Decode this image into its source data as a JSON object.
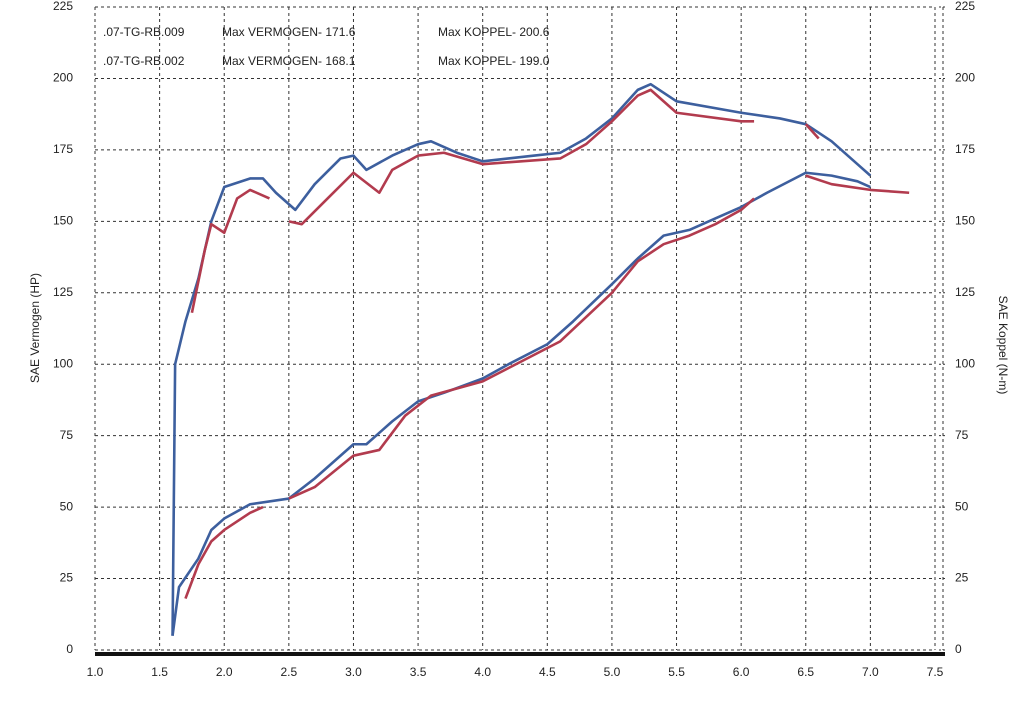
{
  "chart_data": {
    "type": "line",
    "y_label": "SAE Vermogen (HP)",
    "y2_label": "SAE Koppel (N-m)",
    "xlim": [
      1.0,
      7.5
    ],
    "xticks": [
      {
        "value": 1,
        "label": "1.0"
      },
      1.5,
      {
        "value": 2,
        "label": "2.0"
      },
      2.5,
      {
        "value": 3,
        "label": "3.0"
      },
      3.5,
      {
        "value": 4,
        "label": "4.0"
      },
      4.5,
      {
        "value": 5,
        "label": "5.0"
      },
      5.5,
      {
        "value": 6,
        "label": "6.0"
      },
      6.5,
      {
        "value": 7,
        "label": "7.0"
      },
      7.5
    ],
    "ylim": [
      0,
      225
    ],
    "yticks": [
      0,
      25,
      50,
      75,
      100,
      125,
      150,
      175,
      200,
      225
    ],
    "y2lim": [
      0,
      225
    ],
    "y2ticks": [
      0,
      25,
      50,
      75,
      100,
      125,
      150,
      175,
      200,
      225
    ],
    "grid": true,
    "legend": [
      {
        "run": ".07-TG-RB.009",
        "power": "Max VERMOGEN- 171.6",
        "torque": "Max KOPPEL- 200.6",
        "color": "#3d5f9e"
      },
      {
        "run": ".07-TG-RB.002",
        "power": "Max VERMOGEN- 168.1",
        "torque": "Max KOPPEL- 199.0",
        "color": "#b23b4e"
      }
    ],
    "series": [
      {
        "color": "#3d5f9e",
        "axis": "y",
        "x": [
          1.6,
          1.65,
          1.8,
          1.9,
          2.0,
          2.2,
          2.5,
          2.7,
          3.0,
          3.1,
          3.3,
          3.5,
          3.7,
          4.0,
          4.2,
          4.5,
          4.7,
          5.0,
          5.2,
          5.4,
          5.6,
          5.8,
          6.0,
          6.2,
          6.5,
          6.7,
          6.9,
          7.0
        ],
        "values": [
          5,
          22,
          32,
          42,
          46,
          51,
          53,
          60,
          72,
          72,
          80,
          87,
          90,
          95,
          100,
          107,
          115,
          128,
          137,
          145,
          147,
          151,
          155,
          160,
          167,
          166,
          164,
          162
        ]
      },
      {
        "color": "#b23b4e",
        "axis": "y",
        "x": [
          1.7,
          1.8,
          1.9,
          2.0,
          2.2,
          2.3,
          2.4,
          2.5,
          2.7,
          3.0,
          3.2,
          3.4,
          3.6,
          4.0,
          4.3,
          4.6,
          5.0,
          5.2,
          5.4,
          5.6,
          5.8,
          6.0,
          6.1,
          6.3,
          6.5,
          6.7,
          7.0,
          7.3
        ],
        "values": [
          18,
          30,
          38,
          42,
          48,
          50,
          null,
          53,
          57,
          68,
          70,
          82,
          89,
          94,
          101,
          108,
          125,
          136,
          142,
          145,
          149,
          154,
          158,
          null,
          166,
          163,
          161,
          160
        ]
      },
      {
        "color": "#3d5f9e",
        "axis": "y2",
        "x": [
          1.6,
          1.62,
          1.7,
          1.8,
          1.9,
          2.0,
          2.2,
          2.3,
          2.4,
          2.55,
          2.7,
          2.9,
          3.0,
          3.1,
          3.3,
          3.5,
          3.6,
          3.8,
          4.0,
          4.2,
          4.4,
          4.6,
          4.8,
          5.0,
          5.2,
          5.3,
          5.5,
          6.0,
          6.3,
          6.5,
          6.7,
          6.9,
          7.0
        ],
        "values": [
          5,
          100,
          115,
          130,
          150,
          162,
          165,
          165,
          160,
          154,
          163,
          172,
          173,
          168,
          173,
          177,
          178,
          174,
          171,
          172,
          173,
          174,
          179,
          186,
          196,
          198,
          192,
          188,
          186,
          184,
          178,
          170,
          166
        ]
      },
      {
        "color": "#b23b4e",
        "axis": "y2",
        "x": [
          1.75,
          1.85,
          1.9,
          2.0,
          2.1,
          2.2,
          2.35,
          2.45,
          2.5,
          2.6,
          2.8,
          3.0,
          3.2,
          3.3,
          3.5,
          3.7,
          4.0,
          4.3,
          4.6,
          4.8,
          5.0,
          5.2,
          5.3,
          5.5,
          6.0,
          6.1,
          6.3,
          6.5,
          6.6
        ],
        "values": [
          118,
          140,
          149,
          146,
          158,
          161,
          158,
          null,
          150,
          149,
          158,
          167,
          160,
          168,
          173,
          174,
          170,
          171,
          172,
          177,
          185,
          194,
          196,
          188,
          185,
          185,
          null,
          184,
          179
        ]
      }
    ]
  }
}
